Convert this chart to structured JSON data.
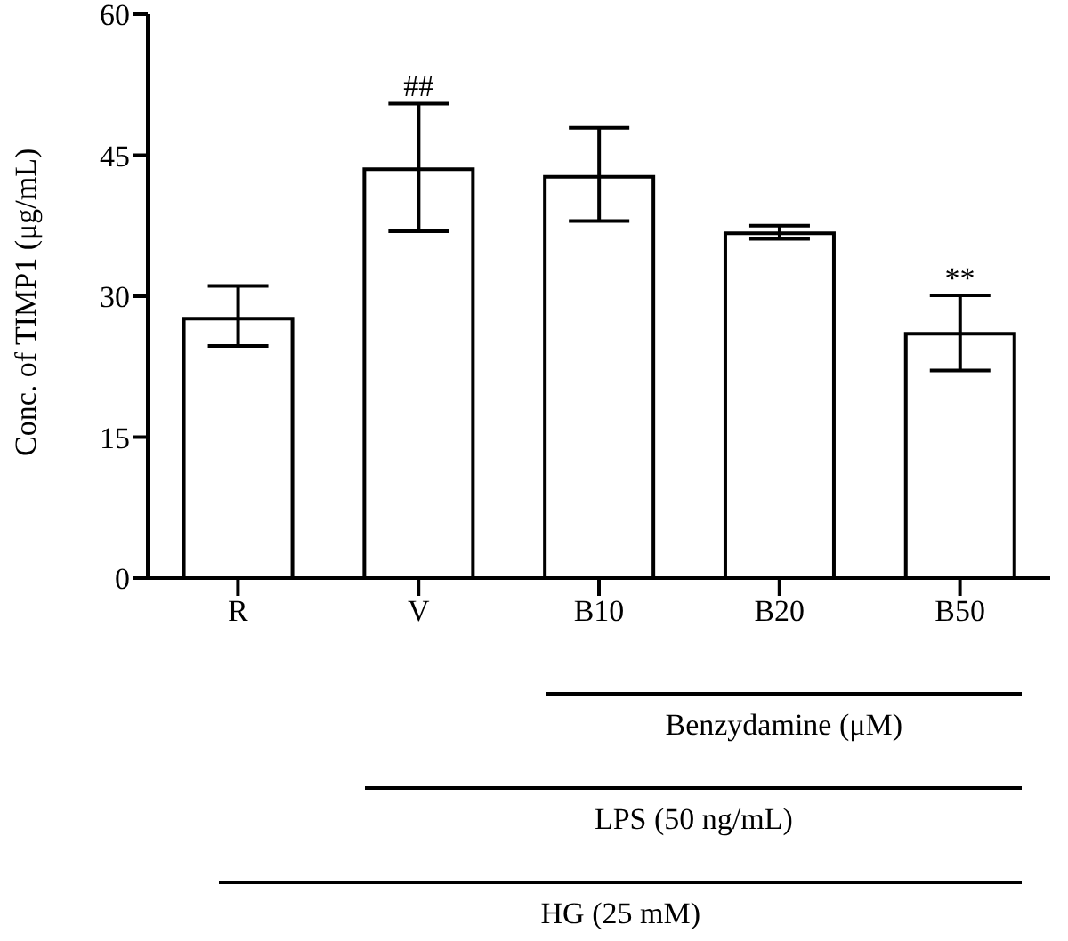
{
  "chart_data": {
    "type": "bar",
    "ylabel": "Conc. of TIMP1 (μg/mL)",
    "categories": [
      "R",
      "V",
      "B10",
      "B20",
      "B50"
    ],
    "values": [
      27.6,
      43.5,
      42.7,
      36.7,
      26.0
    ],
    "errors": [
      [
        24.7,
        31.1
      ],
      [
        36.9,
        50.5
      ],
      [
        38.0,
        47.9
      ],
      [
        36.1,
        37.5
      ],
      [
        22.1,
        30.1
      ]
    ],
    "color": "#ffffff",
    "ylim": [
      0,
      60
    ],
    "yticks": [
      0,
      15,
      30,
      45,
      60
    ],
    "grid": false,
    "legend": false,
    "annotations": [
      {
        "text": "##",
        "x": "V",
        "y": 50.5
      },
      {
        "text": "**",
        "x": "B50",
        "y": 30.1
      },
      "Benzydamine (μM)",
      "LPS (50 ng/mL)",
      "HG (25 mM)"
    ]
  }
}
